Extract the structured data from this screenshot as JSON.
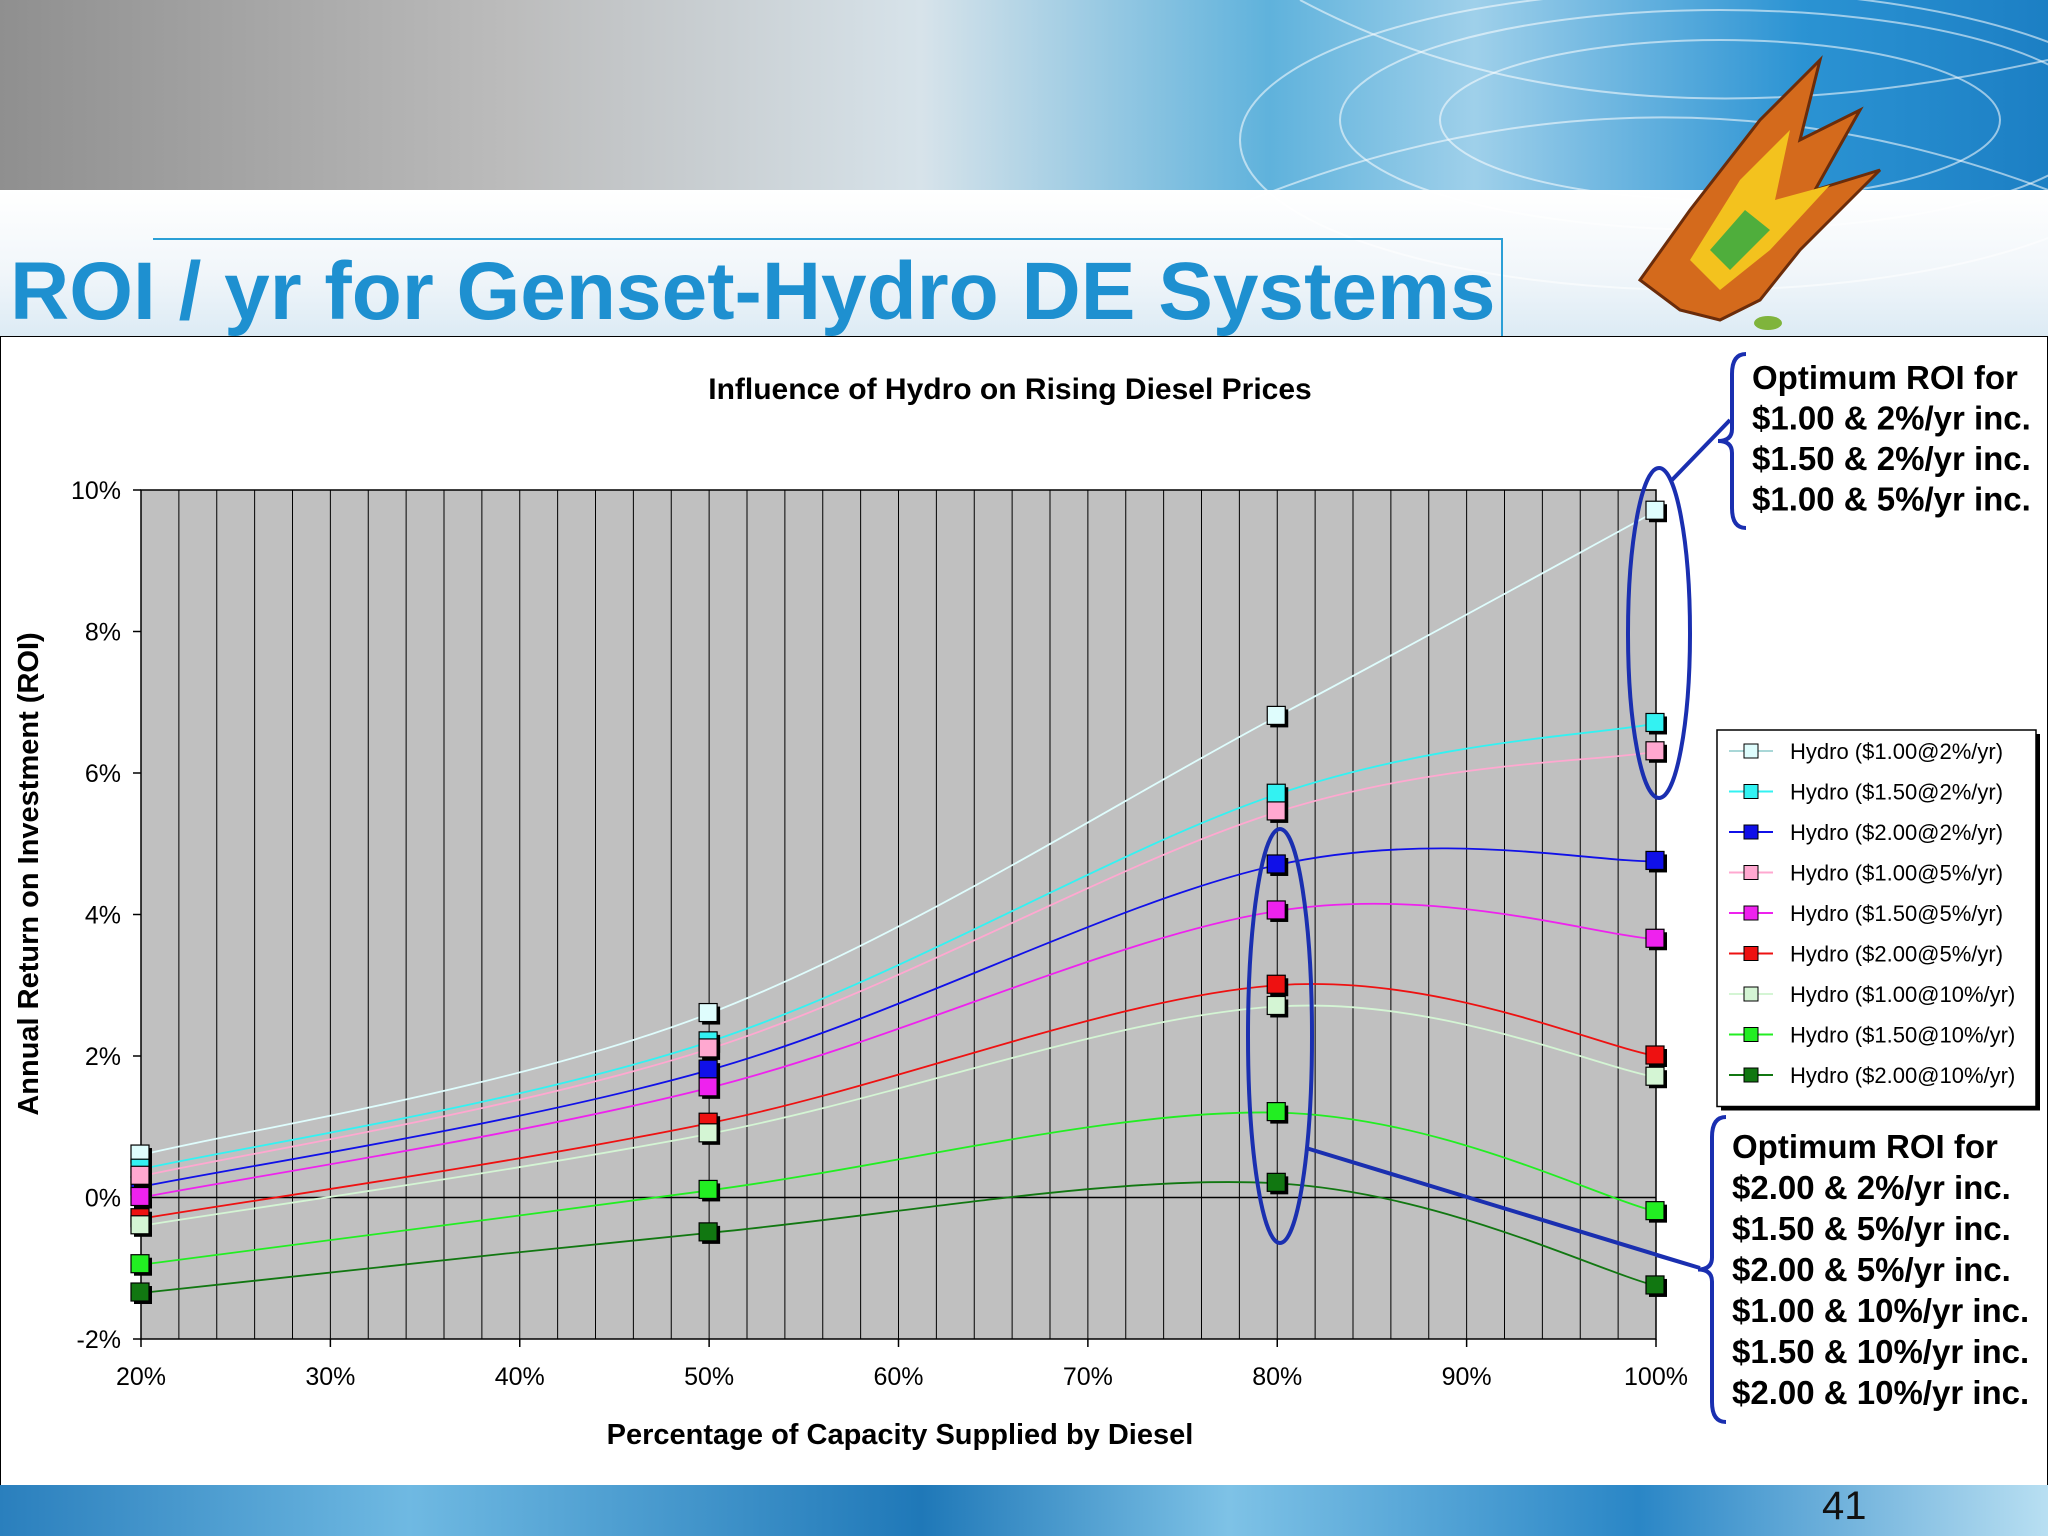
{
  "slide": {
    "title": "ROI / yr for Genset-Hydro DE Systems",
    "page_number": "41"
  },
  "chart_data": {
    "type": "line",
    "title": "Influence of Hydro on Rising Diesel Prices",
    "xlabel": "Percentage of Capacity Supplied by Diesel",
    "ylabel": "Annual Return on Investment (ROI)",
    "x": [
      20,
      50,
      80,
      100
    ],
    "xlim": [
      20,
      100
    ],
    "ylim": [
      -2,
      10
    ],
    "x_ticks": [
      20,
      30,
      40,
      50,
      60,
      70,
      80,
      90,
      100
    ],
    "x_tick_labels": [
      "20%",
      "30%",
      "40%",
      "50%",
      "60%",
      "70%",
      "80%",
      "90%",
      "100%"
    ],
    "y_ticks": [
      -2,
      0,
      2,
      4,
      6,
      8,
      10
    ],
    "y_tick_labels": [
      "-2%",
      "0%",
      "2%",
      "4%",
      "6%",
      "8%",
      "10%"
    ],
    "grid": true,
    "legend_position": "right",
    "series": [
      {
        "name": "Hydro ($1.00@2%/yr)",
        "color": "#dffdfd",
        "values": [
          0.6,
          2.6,
          6.8,
          9.7
        ]
      },
      {
        "name": "Hydro ($1.50@2%/yr)",
        "color": "#33f2f2",
        "values": [
          0.4,
          2.2,
          5.7,
          6.7
        ]
      },
      {
        "name": "Hydro ($2.00@2%/yr)",
        "color": "#1010e8",
        "values": [
          0.15,
          1.8,
          4.7,
          4.75
        ]
      },
      {
        "name": "Hydro ($1.00@5%/yr)",
        "color": "#ffa8d0",
        "values": [
          0.3,
          2.1,
          5.45,
          6.3
        ]
      },
      {
        "name": "Hydro ($1.50@5%/yr)",
        "color": "#ee22ee",
        "values": [
          0.0,
          1.55,
          4.05,
          3.65
        ]
      },
      {
        "name": "Hydro ($2.00@5%/yr)",
        "color": "#ee1111",
        "values": [
          -0.3,
          1.05,
          3.0,
          2.0
        ]
      },
      {
        "name": "Hydro ($1.00@10%/yr)",
        "color": "#d4f5d4",
        "values": [
          -0.4,
          0.9,
          2.7,
          1.7
        ]
      },
      {
        "name": "Hydro ($1.50@10%/yr)",
        "color": "#22ee22",
        "values": [
          -0.95,
          0.1,
          1.2,
          -0.2
        ]
      },
      {
        "name": "Hydro ($2.00@10%/yr)",
        "color": "#117711",
        "values": [
          -1.35,
          -0.5,
          0.2,
          -1.25
        ]
      }
    ]
  },
  "callouts": {
    "top": [
      "Optimum ROI for",
      "$1.00 & 2%/yr inc.",
      "$1.50 & 2%/yr inc.",
      "$1.00 & 5%/yr inc."
    ],
    "bottom": [
      "Optimum ROI for",
      "$2.00 & 2%/yr inc.",
      "$1.50 & 5%/yr inc.",
      "$2.00 & 5%/yr inc.",
      "$1.00 & 10%/yr inc.",
      "$1.50 & 10%/yr inc.",
      "$2.00 & 10%/yr inc."
    ],
    "color": "#1a2fb0"
  }
}
